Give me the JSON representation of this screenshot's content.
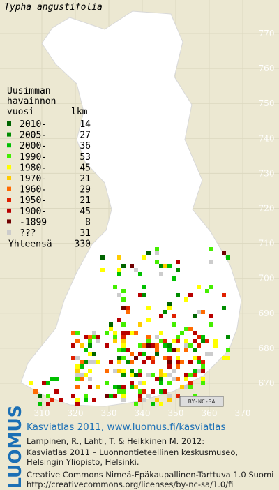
{
  "title": "Typha angustifolia",
  "legend": {
    "heading": [
      "Uusimman",
      "havainnon",
      "vuosi"
    ],
    "count_heading": "lkm",
    "items": [
      {
        "label": "2010-",
        "count": 14,
        "color": "#006400"
      },
      {
        "label": "2005-",
        "count": 27,
        "color": "#008c00"
      },
      {
        "label": "2000-",
        "count": 36,
        "color": "#00c000"
      },
      {
        "label": "1990-",
        "count": 53,
        "color": "#44ee00"
      },
      {
        "label": "1980-",
        "count": 45,
        "color": "#ffff00"
      },
      {
        "label": "1970-",
        "count": 21,
        "color": "#ffcc00"
      },
      {
        "label": "1960-",
        "count": 29,
        "color": "#ff6a00"
      },
      {
        "label": "1950-",
        "count": 21,
        "color": "#e02000"
      },
      {
        "label": "1900-",
        "count": 45,
        "color": "#b80000"
      },
      {
        "label": "-1899",
        "count": 8,
        "color": "#700000"
      },
      {
        "label": "???",
        "count": 31,
        "color": "#cccccc"
      }
    ],
    "total_label": "Yhteensä",
    "total": 330
  },
  "grid": {
    "north": [
      770,
      760,
      750,
      740,
      730,
      720,
      710,
      700,
      690,
      680,
      670
    ],
    "east": [
      310,
      320,
      330,
      340,
      350,
      360,
      370
    ]
  },
  "license_badge": "BY-NC-SA",
  "logo": "LUOMUS",
  "footer": {
    "headline": "Kasviatlas 2011, www.luomus.fi/kasviatlas",
    "lines": [
      "Lampinen, R., Lahti, T. & Heikkinen M. 2012:",
      "Kasviatlas 2011 – Luonnontieteellinen keskusmuseo,",
      "Helsingin Yliopisto, Helsinki.",
      "Creative Commons Nimeä-Epäkaupallinen-Tarttuva 1.0 Suomi",
      "http://creativecommons.org/licenses/by-nc-sa/1.0/fi"
    ]
  }
}
